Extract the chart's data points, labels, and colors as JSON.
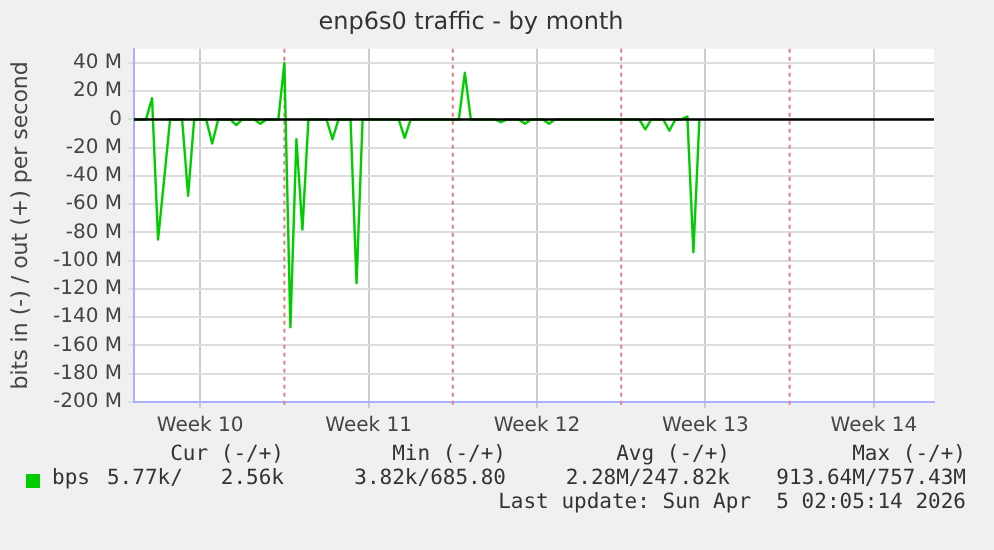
{
  "chart_data": {
    "type": "line",
    "title": "enp6s0 traffic - by month",
    "ylabel": "bits in (-) / out (+) per second",
    "categories": [
      null,
      null,
      null,
      null,
      null,
      null,
      null,
      null,
      null,
      null,
      null,
      "Week 10",
      null,
      null,
      null,
      null,
      null,
      null,
      null,
      null,
      null,
      null,
      null,
      null,
      null,
      null,
      null,
      null,
      null,
      null,
      null,
      null,
      null,
      null,
      null,
      null,
      null,
      null,
      null,
      "Week 11",
      null,
      null,
      null,
      null,
      null,
      null,
      null,
      null,
      null,
      null,
      null,
      null,
      null,
      null,
      null,
      null,
      null,
      null,
      null,
      null,
      null,
      null,
      null,
      null,
      null,
      null,
      null,
      "Week 12",
      null,
      null,
      null,
      null,
      null,
      null,
      null,
      null,
      null,
      null,
      null,
      null,
      null,
      null,
      null,
      null,
      null,
      null,
      null,
      null,
      null,
      null,
      null,
      null,
      null,
      null,
      null,
      "Week 13",
      null,
      null,
      null,
      null,
      null,
      null,
      null,
      null,
      null,
      null,
      null,
      null,
      null,
      null,
      null,
      null,
      null,
      null,
      null,
      null,
      null,
      null,
      null,
      null,
      null,
      null,
      null,
      "Week 14",
      null,
      null,
      null,
      null,
      null,
      null,
      null,
      null,
      null,
      null
    ],
    "series": [
      {
        "name": "bps",
        "color": "#00cc00",
        "values": [
          0,
          0,
          0,
          15,
          -85,
          -43,
          0,
          0,
          0,
          -54,
          0,
          0,
          0,
          -17,
          0,
          0,
          0,
          -4,
          0,
          0,
          0,
          -3,
          0,
          0,
          0,
          40,
          -147,
          -14,
          -78,
          0,
          0,
          0,
          0,
          -14,
          0,
          0,
          0,
          -116,
          0,
          0,
          0,
          0,
          0,
          0,
          0,
          -13,
          0,
          0,
          0,
          0,
          0,
          0,
          0,
          0,
          0,
          33,
          0,
          0,
          0,
          0,
          0,
          -2,
          0,
          0,
          0,
          -3,
          0,
          0,
          0,
          -3,
          0,
          0,
          0,
          0,
          0,
          0,
          0,
          0,
          0,
          0,
          0,
          0,
          0,
          0,
          0,
          -7,
          0,
          0,
          0,
          -8,
          0,
          0,
          2,
          -94,
          0,
          null,
          null,
          null,
          null,
          null,
          null,
          null,
          null,
          null,
          null,
          null,
          null,
          null,
          null,
          null,
          null,
          null,
          null,
          null,
          null,
          null,
          null,
          null,
          null,
          null,
          null,
          null,
          null,
          null,
          null,
          null,
          null,
          null,
          null,
          null,
          null,
          null,
          null,
          null
        ]
      }
    ],
    "ylim": [
      -200,
      50
    ],
    "yticks": [
      {
        "value": -200,
        "label": "-200 M"
      },
      {
        "value": -180,
        "label": "-180 M"
      },
      {
        "value": -160,
        "label": "-160 M"
      },
      {
        "value": -140,
        "label": "-140 M"
      },
      {
        "value": -120,
        "label": "-120 M"
      },
      {
        "value": -100,
        "label": "-100 M"
      },
      {
        "value": -80,
        "label": "-80 M"
      },
      {
        "value": -60,
        "label": "-60 M"
      },
      {
        "value": -40,
        "label": "-40 M"
      },
      {
        "value": -20,
        "label": "-20 M"
      },
      {
        "value": 0,
        "label": "0"
      },
      {
        "value": 20,
        "label": "20 M"
      },
      {
        "value": 40,
        "label": "40 M"
      }
    ],
    "grid": true,
    "legend": "bottom left",
    "marker": "none",
    "line_style": "solid",
    "ref_lines": [
      {
        "axis": "y",
        "value": 0,
        "color": "#000000"
      }
    ],
    "annotations": [
      "Cur (-/+)",
      "Min (-/+)",
      "Avg (-/+)",
      "Max (-/+)",
      "5.77k/   2.56k",
      "3.82k/685.80",
      "2.28M/247.82k",
      "913.64M/757.43M",
      "Last update: Sun Apr  5 02:05:14 2026"
    ]
  }
}
